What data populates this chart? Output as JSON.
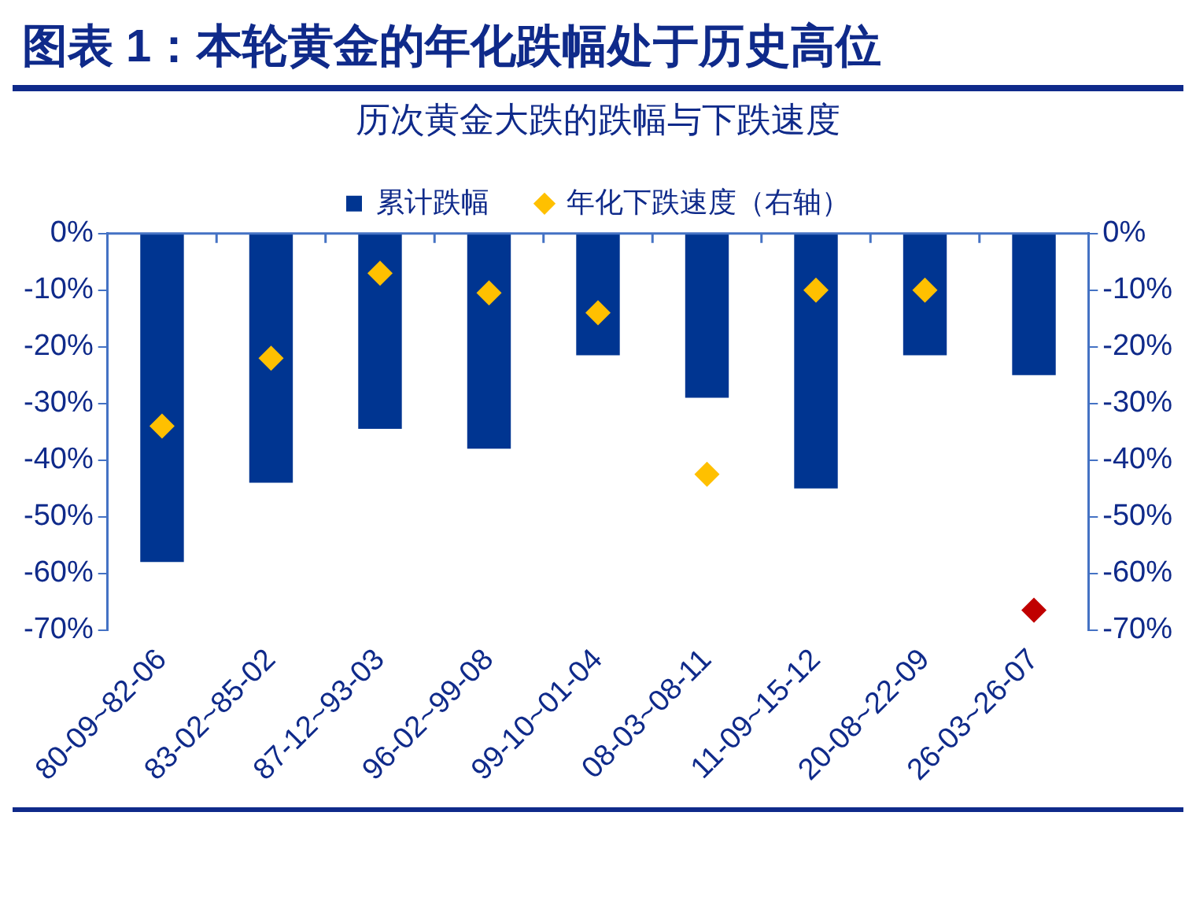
{
  "chart_data": {
    "type": "bar",
    "title": "图表 1：本轮黄金的年化跌幅处于历史高位",
    "subtitle": "历次黄金大跌的跌幅与下跌速度",
    "categories": [
      "80-09~82-06",
      "83-02~85-02",
      "87-12~93-03",
      "96-02~99-08",
      "99-10~01-04",
      "08-03~08-11",
      "11-09~15-12",
      "20-08~22-09",
      "26-03~26-07"
    ],
    "series": [
      {
        "name": "累计跌幅",
        "color": "#003591",
        "values": [
          -58,
          -44,
          -34.5,
          -38,
          -21.5,
          -29,
          -45,
          -21.5,
          -25
        ]
      },
      {
        "name": "年化下跌速度（右轴）",
        "type": "scatter",
        "axis": "y2",
        "marker": "diamond",
        "color": "#ffc000",
        "colors": [
          "#ffc000",
          "#ffc000",
          "#ffc000",
          "#ffc000",
          "#ffc000",
          "#ffc000",
          "#ffc000",
          "#ffc000",
          "#c00000"
        ],
        "x": [
          "80-09~82-06",
          "83-02~85-02",
          "87-12~93-03",
          "96-02~99-08",
          "99-10~01-04",
          "08-03~08-11",
          "11-09~15-12",
          "20-08~22-09",
          "26-03~26-07"
        ],
        "values": [
          -34,
          -22,
          -7,
          -10.5,
          -14,
          -42.5,
          -10,
          -10,
          -66.5
        ]
      }
    ],
    "ylim": [
      -70,
      0
    ],
    "yticks": [
      {
        "value": -70,
        "label": "-70%"
      },
      {
        "value": -60,
        "label": "-60%"
      },
      {
        "value": -50,
        "label": "-50%"
      },
      {
        "value": -40,
        "label": "-40%"
      },
      {
        "value": -30,
        "label": "-30%"
      },
      {
        "value": -20,
        "label": "-20%"
      },
      {
        "value": -10,
        "label": "-10%"
      },
      {
        "value": 0,
        "label": "0%"
      }
    ],
    "y2lim": [
      -70,
      0
    ],
    "y2ticks": [
      {
        "value": -70,
        "label": "-70%"
      },
      {
        "value": -60,
        "label": "-60%"
      },
      {
        "value": -50,
        "label": "-50%"
      },
      {
        "value": -40,
        "label": "-40%"
      },
      {
        "value": -30,
        "label": "-30%"
      },
      {
        "value": -20,
        "label": "-20%"
      },
      {
        "value": -10,
        "label": "-10%"
      },
      {
        "value": 0,
        "label": "0%"
      }
    ],
    "grid": false,
    "legend": "top"
  }
}
